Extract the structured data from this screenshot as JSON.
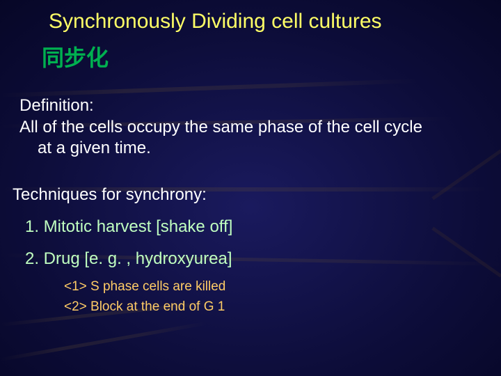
{
  "title": "Synchronously Dividing cell cultures",
  "subtitle": "同步化",
  "definition": {
    "label": "Definition:",
    "line1": "All of the cells occupy the same phase of the cell cycle",
    "line2": "at a given time."
  },
  "techniques": {
    "label": "Techniques for synchrony:",
    "items": [
      "1. Mitotic harvest [shake off]",
      "2. Drug [e. g. , hydroxyurea]"
    ],
    "subitems": [
      "<1> S phase cells are killed",
      "<2> Block at the end of G 1"
    ]
  },
  "colors": {
    "title": "#ffff66",
    "subtitle": "#00b050",
    "body": "#ffffff",
    "tech_item": "#c0ffc0",
    "sub_item": "#ffcc66"
  }
}
